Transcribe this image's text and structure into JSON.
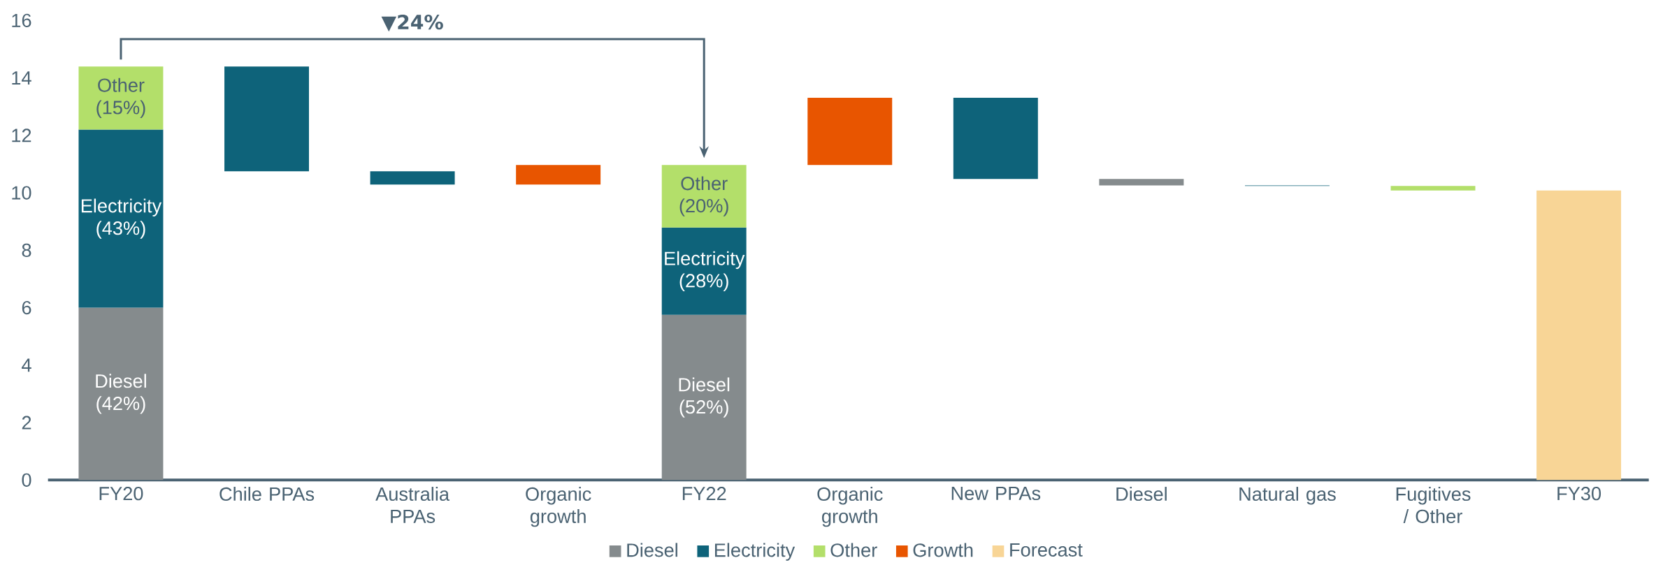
{
  "chart_data": {
    "type": "bar",
    "categories": [
      "FY20",
      "Chile PPAs",
      "Australia PPAs",
      "Organic growth",
      "FY22",
      "Organic growth",
      "New PPAs",
      "Diesel",
      "Natural gas",
      "Fugitives / Other",
      "FY30"
    ],
    "series": [
      {
        "name": "Diesel",
        "color": "#858b8d",
        "values": [
          6.0,
          null,
          null,
          null,
          5.75,
          null,
          null,
          0.22,
          null,
          null,
          null
        ],
        "base": [
          0,
          null,
          null,
          null,
          0,
          null,
          null,
          10.26,
          null,
          null,
          null
        ]
      },
      {
        "name": "Electricity",
        "color": "#0e637a",
        "values": [
          6.2,
          3.65,
          0.46,
          null,
          3.04,
          null,
          2.83,
          null,
          0.02,
          null,
          null
        ],
        "base": [
          6.0,
          10.75,
          10.29,
          null,
          5.75,
          null,
          10.48,
          null,
          10.24,
          null,
          null
        ]
      },
      {
        "name": "Other",
        "color": "#b3df6a",
        "values": [
          2.2,
          null,
          null,
          null,
          2.18,
          null,
          null,
          null,
          null,
          0.16,
          null
        ],
        "base": [
          12.2,
          null,
          null,
          null,
          8.79,
          null,
          null,
          null,
          null,
          10.08,
          null
        ]
      },
      {
        "name": "Growth",
        "color": "#e85500",
        "values": [
          null,
          null,
          null,
          0.68,
          null,
          2.34,
          null,
          null,
          null,
          null,
          null
        ],
        "base": [
          null,
          null,
          null,
          10.29,
          null,
          10.97,
          null,
          null,
          null,
          null,
          null
        ]
      },
      {
        "name": "Forecast",
        "color": "#f8d596",
        "values": [
          null,
          null,
          null,
          null,
          null,
          null,
          null,
          null,
          null,
          null,
          10.08
        ],
        "base": [
          null,
          null,
          null,
          null,
          null,
          null,
          null,
          null,
          null,
          null,
          0
        ]
      }
    ],
    "ylim": [
      0,
      16
    ],
    "yticks": [
      0,
      2,
      4,
      6,
      8,
      10,
      12,
      14,
      16
    ],
    "legend": "bottom",
    "grid": false,
    "annotations": [
      "▼24%",
      "Diesel (42%)",
      "Electricity (43%)",
      "Other (15%)",
      "Diesel (52%)",
      "Electricity (28%)",
      "Other (20%)"
    ]
  }
}
